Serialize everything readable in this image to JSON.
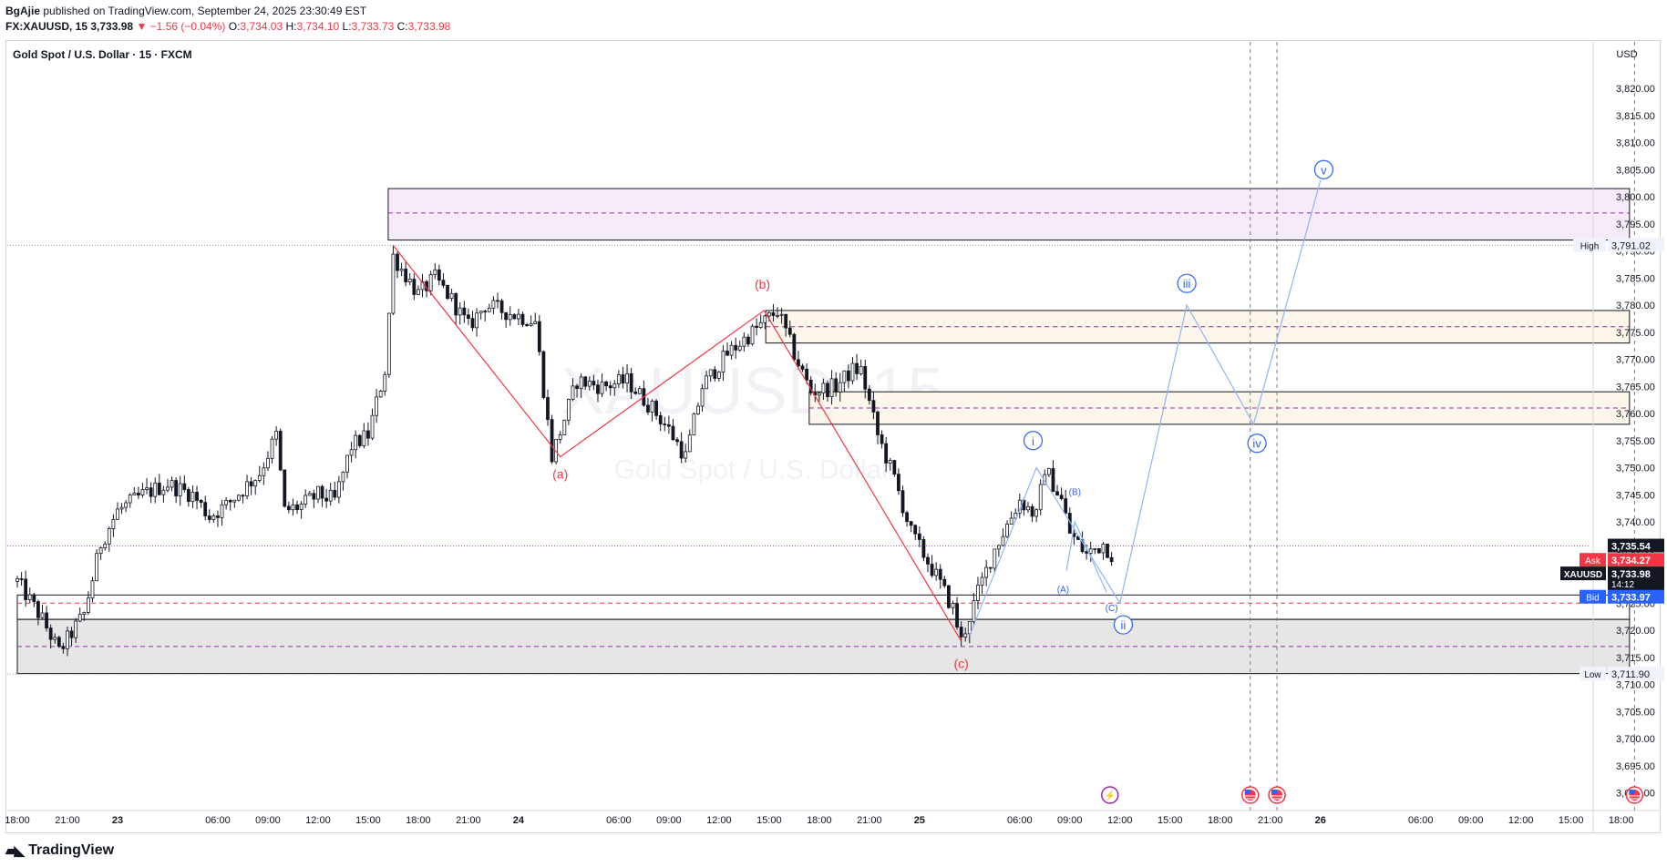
{
  "header": {
    "publisher": "BgAjie",
    "published_text": "published on TradingView.com, September 24, 2025 23:30:49 EST",
    "symbol_line_prefix": "FX:XAUUSD, 15",
    "last": "3,733.98",
    "change": "−1.56 (−0.04%)",
    "o_label": "O:",
    "o": "3,734.03",
    "h_label": "H:",
    "h": "3,734.10",
    "l_label": "L:",
    "l": "3,733.73",
    "c_label": "C:",
    "c": "3,733.98"
  },
  "pane_title": "Gold Spot / U.S. Dollar · 15 · FXCM",
  "watermark": {
    "symbol": "XAUUSD, 15",
    "name": "Gold Spot / U.S. Dollar"
  },
  "brand": "TradingView",
  "colors": {
    "up": "#131722",
    "zone_purple": "#f6ecf9",
    "zone_orange": "#fdf6ea",
    "zone_gray": "#e6e6e6",
    "wave_red": "#f23645",
    "wave_blue": "#90b4f5",
    "label_blue": "#2962ff",
    "ask": "#f23645",
    "bid": "#2962ff"
  },
  "chart_data": {
    "type": "candlestick",
    "currency": "USD",
    "ylim": [
      3685,
      3825
    ],
    "y_ticks": [
      3690,
      3695,
      3700,
      3705,
      3710,
      3715,
      3720,
      3725,
      3730,
      3735,
      3740,
      3745,
      3750,
      3755,
      3760,
      3765,
      3770,
      3775,
      3780,
      3785,
      3790,
      3795,
      3800,
      3805,
      3810,
      3815,
      3820
    ],
    "y_tick_labels": [
      "3,690.00",
      "3,695.00",
      "3,700.00",
      "3,705.00",
      "3,710.00",
      "3,715.00",
      "3,720.00",
      "3,725.00",
      "3,730.00",
      "3,735.00",
      "3,740.00",
      "3,745.00",
      "3,750.00",
      "3,755.00",
      "3,760.00",
      "3,765.00",
      "3,770.00",
      "3,775.00",
      "3,780.00",
      "3,785.00",
      "3,790.00",
      "3,795.00",
      "3,800.00",
      "3,805.00",
      "3,810.00",
      "3,815.00",
      "3,820.00"
    ],
    "x_ticks": [
      {
        "t": 0,
        "label": "18:00"
      },
      {
        "t": 3,
        "label": "21:00"
      },
      {
        "t": 6,
        "label": "23"
      },
      {
        "t": 12,
        "label": "06:00"
      },
      {
        "t": 15,
        "label": "09:00"
      },
      {
        "t": 18,
        "label": "12:00"
      },
      {
        "t": 21,
        "label": "15:00"
      },
      {
        "t": 24,
        "label": "18:00"
      },
      {
        "t": 27,
        "label": "21:00"
      },
      {
        "t": 30,
        "label": "24"
      },
      {
        "t": 36,
        "label": "06:00"
      },
      {
        "t": 39,
        "label": "09:00"
      },
      {
        "t": 42,
        "label": "12:00"
      },
      {
        "t": 45,
        "label": "15:00"
      },
      {
        "t": 48,
        "label": "18:00"
      },
      {
        "t": 51,
        "label": "21:00"
      },
      {
        "t": 54,
        "label": "25"
      },
      {
        "t": 60,
        "label": "06:00"
      },
      {
        "t": 63,
        "label": "09:00"
      },
      {
        "t": 66,
        "label": "12:00"
      },
      {
        "t": 69,
        "label": "15:00"
      },
      {
        "t": 72,
        "label": "18:00"
      },
      {
        "t": 75,
        "label": "21:00"
      },
      {
        "t": 78,
        "label": "26"
      },
      {
        "t": 84,
        "label": "06:00"
      },
      {
        "t": 87,
        "label": "09:00"
      },
      {
        "t": 90,
        "label": "12:00"
      },
      {
        "t": 93,
        "label": "15:00"
      },
      {
        "t": 96,
        "label": "18:00"
      }
    ],
    "price_path": [
      [
        0,
        3729
      ],
      [
        1.5,
        3722
      ],
      [
        2.5,
        3716
      ],
      [
        4,
        3723
      ],
      [
        5,
        3736
      ],
      [
        6,
        3742
      ],
      [
        7.5,
        3745
      ],
      [
        9,
        3747
      ],
      [
        10.5,
        3745
      ],
      [
        11.5,
        3741
      ],
      [
        12.5,
        3743
      ],
      [
        13.5,
        3746
      ],
      [
        14.5,
        3749
      ],
      [
        15.5,
        3756
      ],
      [
        16,
        3742
      ],
      [
        17,
        3743
      ],
      [
        18,
        3745
      ],
      [
        19,
        3744
      ],
      [
        20,
        3754
      ],
      [
        21,
        3756
      ],
      [
        22,
        3768
      ],
      [
        22.5,
        3789
      ],
      [
        24,
        3782
      ],
      [
        25,
        3785
      ],
      [
        26,
        3781
      ],
      [
        27,
        3776
      ],
      [
        28,
        3780
      ],
      [
        29,
        3779
      ],
      [
        31,
        3777
      ],
      [
        32,
        3752
      ],
      [
        33.5,
        3766
      ],
      [
        35,
        3765
      ],
      [
        36.5,
        3766
      ],
      [
        38,
        3761
      ],
      [
        39,
        3757
      ],
      [
        40,
        3752
      ],
      [
        41,
        3765
      ],
      [
        42.5,
        3771
      ],
      [
        44,
        3775
      ],
      [
        45.5,
        3779
      ],
      [
        46.5,
        3771
      ],
      [
        47.5,
        3764
      ],
      [
        49,
        3765
      ],
      [
        50,
        3768
      ],
      [
        50.5,
        3768
      ],
      [
        51.5,
        3756
      ],
      [
        52.5,
        3748
      ],
      [
        53.5,
        3738
      ],
      [
        55,
        3730
      ],
      [
        56,
        3724
      ],
      [
        56.5,
        3718
      ],
      [
        57.5,
        3727
      ],
      [
        58.5,
        3735
      ],
      [
        60,
        3744
      ],
      [
        61,
        3741
      ],
      [
        61.5,
        3750
      ],
      [
        62.5,
        3744
      ],
      [
        63,
        3738
      ],
      [
        64,
        3734
      ],
      [
        65,
        3736
      ],
      [
        65.5,
        3734
      ]
    ],
    "boxes": [
      {
        "name": "zone-top",
        "t1": 22.2,
        "t2": 96.5,
        "top": 3801.5,
        "bottom": 3792,
        "mid": 3797,
        "fill": "zone_purple"
      },
      {
        "name": "zone-b",
        "t1": 44.8,
        "t2": 96.5,
        "top": 3779,
        "bottom": 3773,
        "mid": 3776,
        "fill": "zone_orange"
      },
      {
        "name": "zone-mid",
        "t1": 47.4,
        "t2": 96.5,
        "top": 3764,
        "bottom": 3758,
        "mid": 3761,
        "fill": "zone_orange"
      },
      {
        "name": "zone-low",
        "t1": 0,
        "t2": 96.5,
        "top": 3722,
        "bottom": 3712,
        "mid": 3717,
        "fill": "zone_gray"
      },
      {
        "name": "zone-bid",
        "t1": 0,
        "t2": 96.5,
        "top": 3726.5,
        "bottom": 3722,
        "mid": 3725,
        "fill": "none"
      }
    ],
    "red_wave": [
      [
        22.5,
        3791
      ],
      [
        32.5,
        3752
      ],
      [
        44.7,
        3779
      ],
      [
        56.5,
        3718
      ]
    ],
    "red_labels": [
      {
        "text": "(a)",
        "t": 32.5,
        "y": 3748
      },
      {
        "text": "(b)",
        "t": 44.6,
        "y": 3783
      },
      {
        "text": "(c)",
        "t": 56.5,
        "y": 3713
      }
    ],
    "blue_wave": [
      [
        57,
        3719
      ],
      [
        61,
        3750
      ],
      [
        66,
        3725
      ],
      [
        70,
        3780
      ],
      [
        74,
        3758
      ],
      [
        78,
        3803
      ]
    ],
    "small_wave": [
      [
        62.8,
        3731
      ],
      [
        63.3,
        3740
      ],
      [
        65.2,
        3727
      ]
    ],
    "blue_labels": [
      {
        "text": "i",
        "t": 60.8,
        "y": 3755,
        "circle": true
      },
      {
        "text": "ii",
        "t": 66.2,
        "y": 3721,
        "circle": true
      },
      {
        "text": "iii",
        "t": 70,
        "y": 3784,
        "circle": true
      },
      {
        "text": "iv",
        "t": 74.2,
        "y": 3754.5,
        "circle": true
      },
      {
        "text": "v",
        "t": 78.2,
        "y": 3805,
        "circle": true
      },
      {
        "text": "(A)",
        "t": 62.6,
        "y": 3727,
        "circle": false
      },
      {
        "text": "(B)",
        "t": 63.3,
        "y": 3745,
        "circle": false
      },
      {
        "text": "(C)",
        "t": 65.5,
        "y": 3723.5,
        "circle": false
      }
    ],
    "vlines": [
      73.8,
      75.4,
      96.8
    ],
    "hlines": [
      {
        "y": 3791.02,
        "style": "dotted"
      },
      {
        "y": 3735.54,
        "style": "pink-dotted"
      },
      {
        "y": 3711.9,
        "style": "dotted"
      }
    ],
    "price_labels": [
      {
        "prefix": "High",
        "value": "3,791.02",
        "y": 3791.02,
        "kind": "hl"
      },
      {
        "prefix": "",
        "value": "3,735.54",
        "y": 3735.54,
        "kind": "dark"
      },
      {
        "prefix": "Ask",
        "value": "3,734.27",
        "y": 3732.9,
        "kind": "ask"
      },
      {
        "prefix": "XAUUSD",
        "value": "3,733.98",
        "sub": "14:12",
        "y": 3730.4,
        "kind": "last"
      },
      {
        "prefix": "Bid",
        "value": "3,733.97",
        "y": 3726.1,
        "kind": "bid"
      },
      {
        "prefix": "Low",
        "value": "3,711.90",
        "y": 3711.9,
        "kind": "hl"
      }
    ],
    "event_icons": [
      {
        "t": 65.4,
        "kind": "earnings"
      },
      {
        "t": 73.8,
        "kind": "flag-us"
      },
      {
        "t": 75.4,
        "kind": "flag-us"
      },
      {
        "t": 96.8,
        "kind": "flag-us"
      }
    ]
  }
}
